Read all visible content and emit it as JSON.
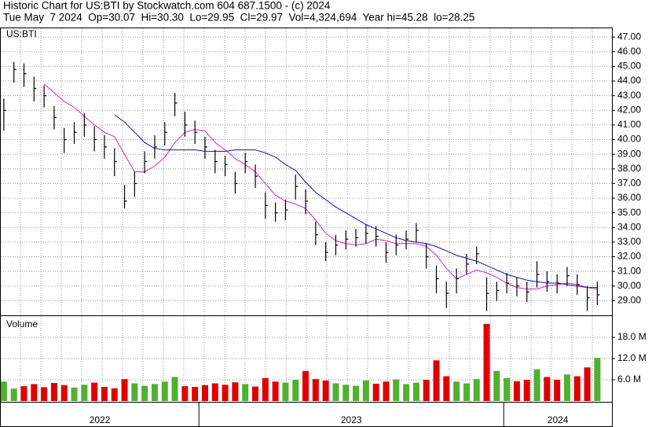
{
  "header": {
    "title": "Historic Chart for US:BTI by Stockwatch.com 604 687.1500 - (c) 2024",
    "quote": "Tue May  7 2024  Op=30.07  Hi=30.30  Lo=29.95  Cl=29.97  Vol=4,324,694  Year hi=45.28  lo=28.25"
  },
  "chart_data": [
    {
      "type": "ohlc",
      "label": "US:BTI",
      "x": [
        2022.36,
        2022.393,
        2022.426,
        2022.459,
        2022.492,
        2022.525,
        2022.558,
        2022.591,
        2022.624,
        2022.657,
        2022.69,
        2022.723,
        2022.756,
        2022.789,
        2022.822,
        2022.855,
        2022.888,
        2022.921,
        2022.954,
        2022.987,
        2023.02,
        2023.053,
        2023.086,
        2023.119,
        2023.152,
        2023.185,
        2023.218,
        2023.251,
        2023.284,
        2023.317,
        2023.35,
        2023.383,
        2023.416,
        2023.449,
        2023.482,
        2023.515,
        2023.548,
        2023.581,
        2023.614,
        2023.647,
        2023.68,
        2023.713,
        2023.746,
        2023.779,
        2023.812,
        2023.845,
        2023.878,
        2023.911,
        2023.944,
        2023.977,
        2024.01,
        2024.043,
        2024.076,
        2024.109,
        2024.142,
        2024.175,
        2024.208,
        2024.241,
        2024.274,
        2024.307
      ],
      "high": [
        42.8,
        45.3,
        45.2,
        44.3,
        43.7,
        42.3,
        40.8,
        41.2,
        41.8,
        40.9,
        40.3,
        39.4,
        36.9,
        37.8,
        39.2,
        40.3,
        41.2,
        43.2,
        41.9,
        41.3,
        40.2,
        39.3,
        38.9,
        37.8,
        39.1,
        38.3,
        36.4,
        35.7,
        35.9,
        37.6,
        36.6,
        34.4,
        33,
        33.5,
        33.8,
        33.9,
        34.2,
        34.1,
        33,
        33.5,
        33.8,
        34.3,
        32.9,
        31.4,
        30.3,
        31.2,
        32.2,
        32.7,
        30.6,
        30.3,
        30.9,
        30.6,
        30.3,
        31.7,
        31,
        30.8,
        31.3,
        30.8,
        30,
        30.3
      ],
      "low": [
        40.6,
        43.9,
        43.6,
        42.6,
        42.2,
        40.7,
        39.1,
        39.7,
        40.2,
        39.2,
        38.7,
        37.5,
        35.3,
        36.1,
        37.7,
        38.7,
        39.6,
        41.6,
        40.2,
        39.7,
        38.7,
        37.7,
        37.5,
        36.3,
        37.7,
        36.7,
        34.6,
        34.4,
        34.5,
        35.9,
        34.9,
        32.8,
        31.7,
        32.1,
        32.5,
        32.7,
        32.9,
        32.7,
        31.6,
        32.1,
        32.5,
        33,
        31.2,
        29.5,
        28.5,
        29.5,
        30.8,
        31.5,
        28.3,
        29,
        29.5,
        29.3,
        28.9,
        29.9,
        29.6,
        29.5,
        30,
        29.4,
        28.3,
        28.7
      ],
      "close": [
        42,
        44.8,
        44.5,
        43.5,
        43,
        41.5,
        40,
        40.5,
        41,
        40,
        39.5,
        38.5,
        35.8,
        37,
        38.5,
        39.5,
        40.5,
        42.5,
        41,
        40.5,
        39.5,
        38.5,
        38.3,
        37,
        38.5,
        37.5,
        35.5,
        35,
        35.2,
        36.8,
        35.8,
        33.5,
        32.3,
        32.8,
        33.2,
        33.3,
        33.6,
        33.4,
        32.3,
        32.8,
        33.2,
        33.8,
        32,
        30.5,
        29.5,
        30.5,
        31.5,
        32.2,
        29.5,
        29.7,
        30.2,
        30,
        29.6,
        30.8,
        30.3,
        30.2,
        30.7,
        30.1,
        29.2,
        29.4
      ],
      "color": "#000000",
      "series": [
        {
          "color": "#e020c0",
          "values": [
            null,
            null,
            null,
            null,
            43.8,
            43.2,
            42.6,
            42.2,
            41.6,
            41,
            40.5,
            40.2,
            39,
            37.8,
            37.8,
            38.2,
            38.8,
            39.8,
            40.5,
            40.7,
            40.6,
            39.8,
            39.3,
            38.7,
            38.3,
            37.8,
            37,
            36.2,
            35.8,
            35.6,
            35.3,
            34.5,
            33.6,
            33.1,
            32.9,
            32.8,
            32.9,
            33.2,
            33.1,
            32.9,
            32.9,
            32.9,
            32.7,
            32.1,
            31.2,
            30.5,
            30.8,
            31.1,
            30.9,
            30.6,
            30.2,
            29.9,
            29.8,
            29.8,
            30,
            30.1,
            30.2,
            30.1,
            29.9,
            29.8
          ]
        },
        {
          "color": "#1010c0",
          "values": [
            null,
            null,
            null,
            null,
            null,
            null,
            null,
            null,
            null,
            null,
            null,
            41.7,
            41.2,
            40.5,
            39.8,
            39.4,
            39.3,
            39.3,
            39.3,
            39.3,
            39.2,
            39.2,
            39.2,
            39.3,
            39.3,
            39.3,
            39.1,
            38.8,
            38.3,
            37.9,
            37.1,
            36.4,
            35.9,
            35.4,
            35,
            34.6,
            34.2,
            33.9,
            33.6,
            33.3,
            33.1,
            33,
            32.9,
            32.7,
            32.4,
            32.1,
            31.9,
            31.7,
            31.4,
            31.1,
            30.8,
            30.6,
            30.4,
            30.3,
            30.2,
            30.2,
            30.1,
            30,
            29.9,
            29.9
          ]
        }
      ],
      "xlim": [
        2022.35,
        2024.355
      ],
      "ylim": [
        28,
        47.6
      ],
      "yticks": [
        {
          "value": 29,
          "label": "29.00"
        },
        {
          "value": 30,
          "label": "30.00"
        },
        {
          "value": 31,
          "label": "31.00"
        },
        {
          "value": 32,
          "label": "32.00"
        },
        {
          "value": 33,
          "label": "33.00"
        },
        {
          "value": 34,
          "label": "34.00"
        },
        {
          "value": 35,
          "label": "35.00"
        },
        {
          "value": 36,
          "label": "36.00"
        },
        {
          "value": 37,
          "label": "37.00"
        },
        {
          "value": 38,
          "label": "38.00"
        },
        {
          "value": 39,
          "label": "39.00"
        },
        {
          "value": 40,
          "label": "40.00"
        },
        {
          "value": 41,
          "label": "41.00"
        },
        {
          "value": 42,
          "label": "42.00"
        },
        {
          "value": 43,
          "label": "43.00"
        },
        {
          "value": 44,
          "label": "44.00"
        },
        {
          "value": 45,
          "label": "45.00"
        },
        {
          "value": 46,
          "label": "46.00"
        },
        {
          "value": 47,
          "label": "47.00"
        }
      ],
      "grid": true
    },
    {
      "type": "volume",
      "label": "Volume",
      "values": [
        5.5,
        3.5,
        4.2,
        4.8,
        3.9,
        5.1,
        4.5,
        3.8,
        4.6,
        5.2,
        4.0,
        3.6,
        6.2,
        5.0,
        4.3,
        4.8,
        5.5,
        6.8,
        4.2,
        4.0,
        4.5,
        5.0,
        4.6,
        5.3,
        4.8,
        4.1,
        6.5,
        5.5,
        5.2,
        6.0,
        8.5,
        6.2,
        5.8,
        5.0,
        4.6,
        4.3,
        5.8,
        4.9,
        5.5,
        6.1,
        4.8,
        5.2,
        6.0,
        11.5,
        7.0,
        5.5,
        5.0,
        6.2,
        21.8,
        8.5,
        6.5,
        5.6,
        6.0,
        9.0,
        6.8,
        6.0,
        7.5,
        7.0,
        9.5,
        12.2
      ],
      "up_color": "#50b030",
      "down_color": "#e00000",
      "ylim": [
        0,
        24
      ],
      "yticks": [
        {
          "value": 6,
          "label": "6.0 M"
        },
        {
          "value": 12,
          "label": "12.0 M"
        },
        {
          "value": 18,
          "label": "18.0 M"
        }
      ],
      "xticks": [
        {
          "value": 2022,
          "label": "2022"
        },
        {
          "value": 2023,
          "label": "2023"
        },
        {
          "value": 2024,
          "label": "2024"
        }
      ],
      "grid": true
    }
  ]
}
